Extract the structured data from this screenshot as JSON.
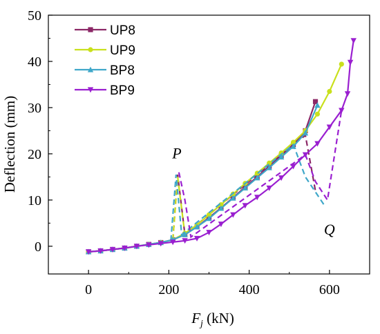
{
  "chart_data": {
    "type": "line",
    "xlabel_main": "F",
    "xlabel_sub": "j",
    "xlabel_unit": " (kN)",
    "ylabel": "Deflection (mm)",
    "xlim": [
      -100,
      700
    ],
    "ylim": [
      -6,
      50
    ],
    "xticks": [
      0,
      200,
      400,
      600
    ],
    "yticks": [
      0,
      10,
      20,
      30,
      40,
      50
    ],
    "grid": false,
    "legend_position": "top-left",
    "annotations": [
      {
        "text": "P",
        "x": 220,
        "y": 19
      },
      {
        "text": "Q",
        "x": 600,
        "y": 2.5
      }
    ],
    "series": [
      {
        "name": "UP8",
        "color": "#8B2766",
        "marker": "square",
        "solid": [
          [
            0,
            -1.2
          ],
          [
            30,
            -1.0
          ],
          [
            60,
            -0.7
          ],
          [
            90,
            -0.4
          ],
          [
            120,
            0
          ],
          [
            150,
            0.4
          ],
          [
            180,
            0.8
          ],
          [
            210,
            1.4
          ],
          [
            240,
            2.5
          ],
          [
            270,
            4.2
          ],
          [
            300,
            6.2
          ],
          [
            330,
            8.3
          ],
          [
            360,
            10.5
          ],
          [
            390,
            12.8
          ],
          [
            420,
            15.0
          ],
          [
            450,
            17.3
          ],
          [
            480,
            19.6
          ],
          [
            510,
            22.0
          ],
          [
            540,
            25.0
          ],
          [
            565,
            31.3
          ]
        ],
        "dashed": [
          [
            210,
            1.4
          ],
          [
            222,
            15.5
          ],
          [
            240,
            2.5
          ],
          [
            510,
            22.0
          ],
          [
            540,
            24.0
          ],
          [
            565,
            12.0
          ]
        ]
      },
      {
        "name": "UP9",
        "color": "#C9E01C",
        "marker": "circle",
        "solid": [
          [
            0,
            -1.2
          ],
          [
            30,
            -1.0
          ],
          [
            60,
            -0.7
          ],
          [
            90,
            -0.4
          ],
          [
            120,
            0
          ],
          [
            150,
            0.4
          ],
          [
            180,
            0.8
          ],
          [
            210,
            1.4
          ],
          [
            240,
            2.8
          ],
          [
            270,
            4.6
          ],
          [
            300,
            6.8
          ],
          [
            330,
            9.0
          ],
          [
            360,
            11.3
          ],
          [
            390,
            13.6
          ],
          [
            420,
            15.8
          ],
          [
            450,
            18.0
          ],
          [
            480,
            20.2
          ],
          [
            510,
            22.5
          ],
          [
            540,
            25.0
          ],
          [
            570,
            28.6
          ],
          [
            600,
            33.5
          ],
          [
            630,
            39.4
          ]
        ],
        "dashed": [
          [
            210,
            1.4
          ],
          [
            222,
            15.0
          ],
          [
            240,
            2.5
          ]
        ]
      },
      {
        "name": "BP8",
        "color": "#3FA7C9",
        "marker": "triangle-up",
        "solid": [
          [
            0,
            -1.2
          ],
          [
            30,
            -1.0
          ],
          [
            60,
            -0.7
          ],
          [
            90,
            -0.4
          ],
          [
            120,
            0
          ],
          [
            150,
            0.4
          ],
          [
            180,
            0.8
          ],
          [
            210,
            1.4
          ],
          [
            240,
            2.5
          ],
          [
            270,
            4.2
          ],
          [
            300,
            6.0
          ],
          [
            330,
            8.2
          ],
          [
            360,
            10.4
          ],
          [
            390,
            12.6
          ],
          [
            420,
            14.8
          ],
          [
            450,
            17.0
          ],
          [
            480,
            19.3
          ],
          [
            510,
            21.6
          ],
          [
            540,
            24.5
          ],
          [
            570,
            30.5
          ]
        ],
        "dashed": [
          [
            205,
            1.2
          ],
          [
            218,
            15.5
          ],
          [
            232,
            2.5
          ],
          [
            510,
            22.0
          ],
          [
            540,
            15.0
          ],
          [
            590,
            8.5
          ]
        ]
      },
      {
        "name": "BP9",
        "color": "#9A1FD0",
        "marker": "triangle-down",
        "solid": [
          [
            0,
            -1.2
          ],
          [
            30,
            -1.0
          ],
          [
            60,
            -0.7
          ],
          [
            90,
            -0.4
          ],
          [
            120,
            0
          ],
          [
            150,
            0.3
          ],
          [
            180,
            0.6
          ],
          [
            210,
            0.9
          ],
          [
            240,
            1.2
          ],
          [
            270,
            1.7
          ],
          [
            300,
            3.0
          ],
          [
            330,
            4.8
          ],
          [
            360,
            6.8
          ],
          [
            390,
            8.8
          ],
          [
            420,
            10.6
          ],
          [
            450,
            12.6
          ],
          [
            480,
            14.8
          ],
          [
            510,
            17.3
          ],
          [
            540,
            19.8
          ],
          [
            570,
            22.2
          ],
          [
            600,
            25.8
          ],
          [
            630,
            29.4
          ],
          [
            645,
            33.0
          ],
          [
            652,
            39.8
          ],
          [
            660,
            44.5
          ]
        ],
        "dashed": [
          [
            225,
            16.0
          ],
          [
            240,
            10.0
          ],
          [
            255,
            2.0
          ],
          [
            540,
            19.8
          ],
          [
            565,
            14.0
          ],
          [
            595,
            10.0
          ],
          [
            630,
            29.4
          ]
        ]
      }
    ]
  }
}
